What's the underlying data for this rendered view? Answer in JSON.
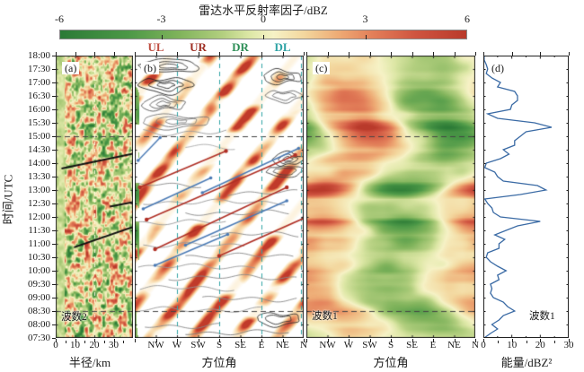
{
  "colorbar": {
    "title": "雷达水平反射率因子/dBZ",
    "tick_labels": [
      "-6",
      "-3",
      "0",
      "3",
      "6"
    ],
    "tick_values": [
      -6,
      -3,
      0,
      3,
      6
    ],
    "min": -6,
    "max": 6,
    "stops": [
      [
        -6,
        "#2b7a36"
      ],
      [
        -4,
        "#4c9847"
      ],
      [
        -2.5,
        "#7fb35b"
      ],
      [
        -1.2,
        "#b3cf7f"
      ],
      [
        -0.4,
        "#dde7a6"
      ],
      [
        0.3,
        "#f6f2c6"
      ],
      [
        1.2,
        "#f3d79e"
      ],
      [
        2.2,
        "#eeac76"
      ],
      [
        3.2,
        "#e3805a"
      ],
      [
        4.5,
        "#cf5440"
      ],
      [
        6,
        "#b93a2b"
      ]
    ]
  },
  "quadrant_labels": [
    {
      "label": "UL",
      "color": "#bf4e42",
      "u": 0.125
    },
    {
      "label": "UR",
      "color": "#9e2d22",
      "u": 0.375
    },
    {
      "label": "DR",
      "color": "#2e8f57",
      "u": 0.625
    },
    {
      "label": "DL",
      "color": "#2fa3a5",
      "u": 0.875
    }
  ],
  "time_axis": {
    "title": "时间/UTC",
    "labels": [
      "18:00",
      "17:30",
      "17:00",
      "16:30",
      "16:00",
      "15:30",
      "15:00",
      "14:30",
      "14:00",
      "13:30",
      "13:00",
      "12:30",
      "12:00",
      "11:30",
      "11:00",
      "10:30",
      "10:00",
      "09:30",
      "09:00",
      "08:30",
      "08:00",
      "07:30"
    ]
  },
  "dashed_times": [
    "15:00",
    "08:30"
  ],
  "panels": {
    "a": {
      "tag": "(a)",
      "annotation": "波数2",
      "xlabel": "半径/km",
      "xticks": [
        "0",
        "10",
        "20",
        "30"
      ],
      "xtick_km": [
        0,
        10,
        20,
        30
      ],
      "x_max_km": 40,
      "dashed_vline_km": 20,
      "black_lines_km_time": [
        [
          3,
          13.8,
          40,
          14.35
        ],
        [
          28,
          12.38,
          40,
          12.55
        ],
        [
          9.5,
          10.87,
          40,
          11.63
        ]
      ]
    },
    "b": {
      "tag": "(b)",
      "xlabel": "方位角",
      "xticks": [
        "NW",
        "W",
        "SW",
        "S",
        "SE",
        "E",
        "NE",
        "N"
      ],
      "teal_vlines_u": [
        0.25,
        0.5,
        0.75,
        0.985
      ],
      "red_lines_u_time": [
        [
          0.03,
          13.1,
          0.54,
          14.45
        ],
        [
          0.07,
          11.9,
          0.95,
          14.3
        ],
        [
          0.12,
          10.8,
          0.9,
          13.1
        ],
        [
          0.5,
          10.55,
          1.0,
          11.95
        ]
      ],
      "blue_lines_u_time": [
        [
          0.02,
          14.1,
          0.15,
          14.95
        ],
        [
          0.4,
          12.9,
          0.97,
          14.55
        ],
        [
          0.05,
          12.3,
          0.45,
          13.45
        ],
        [
          0.3,
          10.95,
          0.9,
          12.6
        ],
        [
          0.12,
          10.2,
          0.55,
          11.35
        ]
      ]
    },
    "c": {
      "tag": "(c)",
      "annotation": "波数1",
      "xlabel": "方位角",
      "xticks": [
        "NW",
        "W",
        "SW",
        "S",
        "SE",
        "E",
        "NE",
        "N"
      ]
    },
    "d": {
      "tag": "(d)",
      "annotation": "波数1",
      "xlabel": "能量/dBZ²",
      "xticks": [
        "0",
        "10",
        "20",
        "30"
      ],
      "xtick_values": [
        0,
        10,
        20,
        30
      ],
      "x_max": 30,
      "line_color": "#3b6ba5"
    }
  },
  "chart_data": [
    {
      "panel": "a",
      "type": "heatmap",
      "x_axis": {
        "label": "半径/km",
        "range": [
          0,
          40
        ],
        "ticks": [
          0,
          10,
          20,
          30
        ]
      },
      "y_axis": {
        "label": "时间/UTC",
        "top": "18:00",
        "bottom": "07:30"
      },
      "value_label": "雷达水平反射率因子/dBZ",
      "value_range": [
        -6,
        6
      ],
      "annotation": "波数2",
      "description": "Granular wavenumber-2 reflectivity anomalies (±6 dBZ) vs radius and time; pale dashed vertical line at 20 km; horizontal dashed lines at 15:00 and 08:30 UTC; three black sloping lines mark outward-propagating features.",
      "reference_lines": [
        [
          3,
          13.8,
          40,
          14.35
        ],
        [
          28,
          12.38,
          40,
          12.55
        ],
        [
          9.5,
          10.87,
          40,
          11.63
        ]
      ]
    },
    {
      "panel": "b",
      "type": "heatmap",
      "x_axis": {
        "label": "方位角",
        "ticks": [
          "N",
          "NW",
          "W",
          "SW",
          "S",
          "SE",
          "E",
          "NE",
          "N"
        ]
      },
      "y_axis": {
        "label": "时间/UTC",
        "top": "18:00",
        "bottom": "07:30"
      },
      "value_range": [
        -6,
        6
      ],
      "quadrants": [
        "UL",
        "UR",
        "DR",
        "DL"
      ],
      "description": "Azimuth–time diagram: white background with tilted orange/red streaks, gray/black reflectivity contours clustered near NW–W and NE–N, teal dashed vertical lines at W, S, E and right N edge, red and blue sloping lines (with end dots) marking azimuthally propagating wave features between ~10:00 and ~15:00 UTC."
    },
    {
      "panel": "c",
      "type": "heatmap",
      "x_axis": {
        "label": "方位角",
        "ticks": [
          "N",
          "NW",
          "W",
          "SW",
          "S",
          "SE",
          "E",
          "NE",
          "N"
        ]
      },
      "y_axis": {
        "label": "时间/UTC",
        "top": "18:00",
        "bottom": "07:30"
      },
      "value_range": [
        -6,
        6
      ],
      "annotation": "波数1",
      "description": "Smoothed wavenumber-1 azimuth–time pattern: broad red (positive) anomalies mostly over NW–SW and wrap-around at N edges, broad green (negative) anomalies over S–NE, pulsing with the energy in panel (d); dashed horizontal lines at 15:00 and 08:30 UTC."
    },
    {
      "panel": "d",
      "type": "line",
      "x_axis": {
        "label": "能量/dBZ²",
        "range": [
          0,
          30
        ],
        "ticks": [
          0,
          10,
          20,
          30
        ]
      },
      "y_axis": {
        "label": "时间/UTC",
        "top": "18:00",
        "bottom": "07:30"
      },
      "annotation": "波数1",
      "sample_interval_min": 10,
      "first_sample": "18:00",
      "last_sample": "07:30",
      "values": [
        0.3,
        0.3,
        1,
        1.5,
        1,
        3,
        6,
        5,
        11,
        12,
        12,
        10,
        9.5,
        1.5,
        5,
        18,
        24,
        15,
        13,
        11,
        11,
        7,
        9,
        6,
        1,
        0.5,
        4,
        5,
        7,
        19,
        22,
        13,
        0.5,
        1.5,
        3,
        3.5,
        6,
        20,
        12,
        8,
        4,
        7.5,
        5.5,
        5.5,
        1.5,
        1,
        2.5,
        5,
        8,
        5,
        5.5,
        2.5,
        3,
        2.5,
        3.5,
        7,
        8.5,
        11,
        7,
        5.5,
        3,
        5,
        2.5,
        0.3
      ]
    }
  ]
}
